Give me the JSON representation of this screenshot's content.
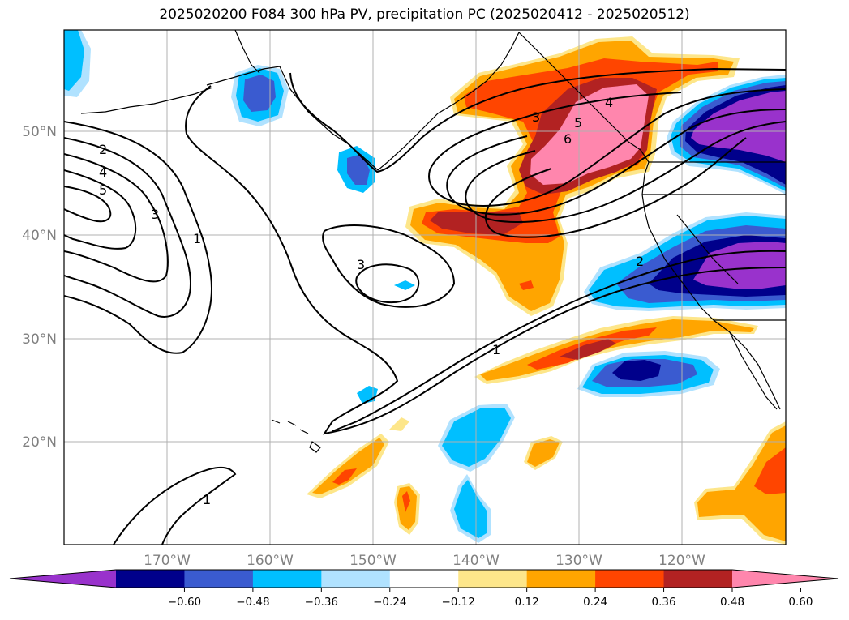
{
  "title": "2025020200 F084 300 hPa PV, precipitation PC (2025020412 - 2025020512)",
  "lon_labels": [
    "170°W",
    "160°W",
    "150°W",
    "140°W",
    "130°W",
    "120°W"
  ],
  "lat_labels": [
    "50°N",
    "40°N",
    "30°N",
    "20°N"
  ],
  "colorbar": {
    "colors": [
      "#9932cc",
      "#00008b",
      "#3a5bd0",
      "#00bfff",
      "#b0e2ff",
      "#ffffff",
      "#fde68a",
      "#ffa500",
      "#ff4500",
      "#b22222",
      "#ff86ad"
    ],
    "tick_labels": [
      "−0.60",
      "−0.48",
      "−0.36",
      "−0.24",
      "−0.12",
      "0.12",
      "0.24",
      "0.36",
      "0.48",
      "0.60"
    ]
  },
  "contour_labels": [
    "2",
    "4",
    "5",
    "3",
    "1",
    "3",
    "3",
    "5",
    "6",
    "4",
    "2",
    "1",
    "1"
  ],
  "colors": {
    "coast": "#000000",
    "grid": "#b0b0b0",
    "contour": "#000000"
  }
}
